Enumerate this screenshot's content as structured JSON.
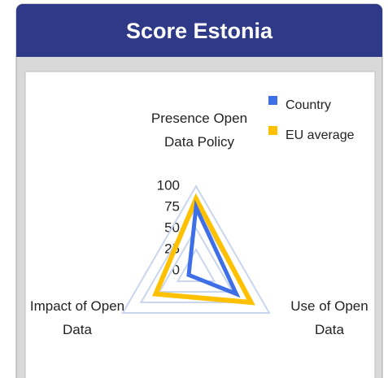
{
  "chart_data": {
    "type": "radar",
    "title": "Score Estonia",
    "categories": [
      "Presence Open Data Policy",
      "Use of Open Data",
      "Impact of Open Data"
    ],
    "series": [
      {
        "name": "Country",
        "color": "#3f6fe6",
        "values": [
          75,
          55,
          10
        ]
      },
      {
        "name": "EU average",
        "color": "#ffc000",
        "values": [
          85,
          75,
          55
        ]
      }
    ],
    "ylim": [
      0,
      100
    ],
    "yticks": [
      0,
      25,
      50,
      75,
      100
    ],
    "grid": true,
    "legend": "top-right"
  }
}
